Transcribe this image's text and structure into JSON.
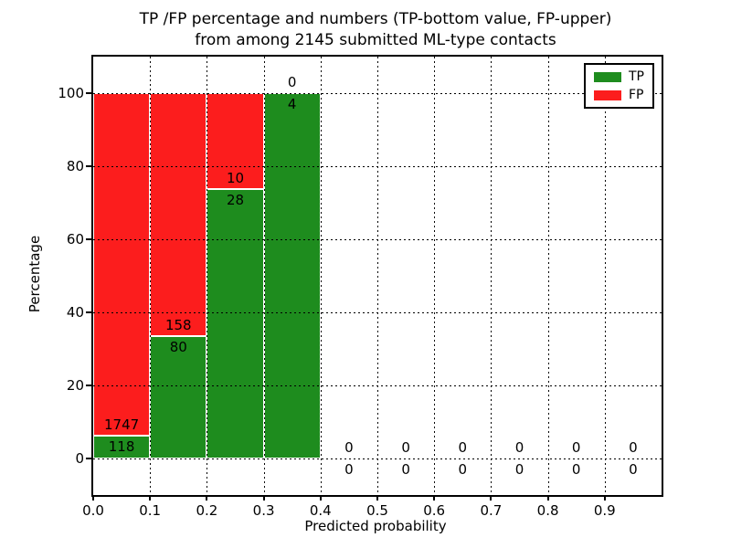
{
  "figure": {
    "title_line1": "TP /FP percentage and numbers (TP-bottom value, FP-upper)",
    "title_line2": "from among 2145 submitted ML-type contacts",
    "xlabel": "Predicted probability",
    "ylabel": "Percentage"
  },
  "chart_data": {
    "type": "bar",
    "stacked": true,
    "title": "TP /FP percentage and numbers (TP-bottom value, FP-upper) from among 2145 submitted ML-type contacts",
    "xlabel": "Predicted probability",
    "ylabel": "Percentage",
    "xlim": [
      0.0,
      1.0
    ],
    "ylim": [
      -10,
      110
    ],
    "grid": true,
    "total_contacts": 2145,
    "xticks": [
      "0.0",
      "0.1",
      "0.2",
      "0.3",
      "0.4",
      "0.5",
      "0.6",
      "0.7",
      "0.8",
      "0.9"
    ],
    "yticks": [
      0,
      20,
      40,
      60,
      80,
      100
    ],
    "colors": {
      "tp": "#1e8c1e",
      "fp": "#fc1d1d"
    },
    "legend_position": "upper right",
    "legend": [
      {
        "label": "TP",
        "series": "tp"
      },
      {
        "label": "FP",
        "series": "fp"
      }
    ],
    "series": [
      {
        "name": "TP",
        "counts": [
          118,
          80,
          28,
          4,
          0,
          0,
          0,
          0,
          0,
          0
        ]
      },
      {
        "name": "FP",
        "counts": [
          1747,
          158,
          10,
          0,
          0,
          0,
          0,
          0,
          0,
          0
        ]
      }
    ],
    "bars": [
      {
        "x0": 0.0,
        "x1": 0.1,
        "tp": 118,
        "fp": 1747,
        "tp_pct": 6.327,
        "fp_pct": 93.673
      },
      {
        "x0": 0.1,
        "x1": 0.2,
        "tp": 80,
        "fp": 158,
        "tp_pct": 33.613,
        "fp_pct": 66.387
      },
      {
        "x0": 0.2,
        "x1": 0.3,
        "tp": 28,
        "fp": 10,
        "tp_pct": 73.684,
        "fp_pct": 26.316
      },
      {
        "x0": 0.3,
        "x1": 0.4,
        "tp": 4,
        "fp": 0,
        "tp_pct": 100,
        "fp_pct": 0
      },
      {
        "x0": 0.4,
        "x1": 0.5,
        "tp": 0,
        "fp": 0,
        "tp_pct": 0,
        "fp_pct": 0
      },
      {
        "x0": 0.5,
        "x1": 0.6,
        "tp": 0,
        "fp": 0,
        "tp_pct": 0,
        "fp_pct": 0
      },
      {
        "x0": 0.6,
        "x1": 0.7,
        "tp": 0,
        "fp": 0,
        "tp_pct": 0,
        "fp_pct": 0
      },
      {
        "x0": 0.7,
        "x1": 0.8,
        "tp": 0,
        "fp": 0,
        "tp_pct": 0,
        "fp_pct": 0
      },
      {
        "x0": 0.8,
        "x1": 0.9,
        "tp": 0,
        "fp": 0,
        "tp_pct": 0,
        "fp_pct": 0
      },
      {
        "x0": 0.9,
        "x1": 1.0,
        "tp": 0,
        "fp": 0,
        "tp_pct": 0,
        "fp_pct": 0
      }
    ]
  }
}
